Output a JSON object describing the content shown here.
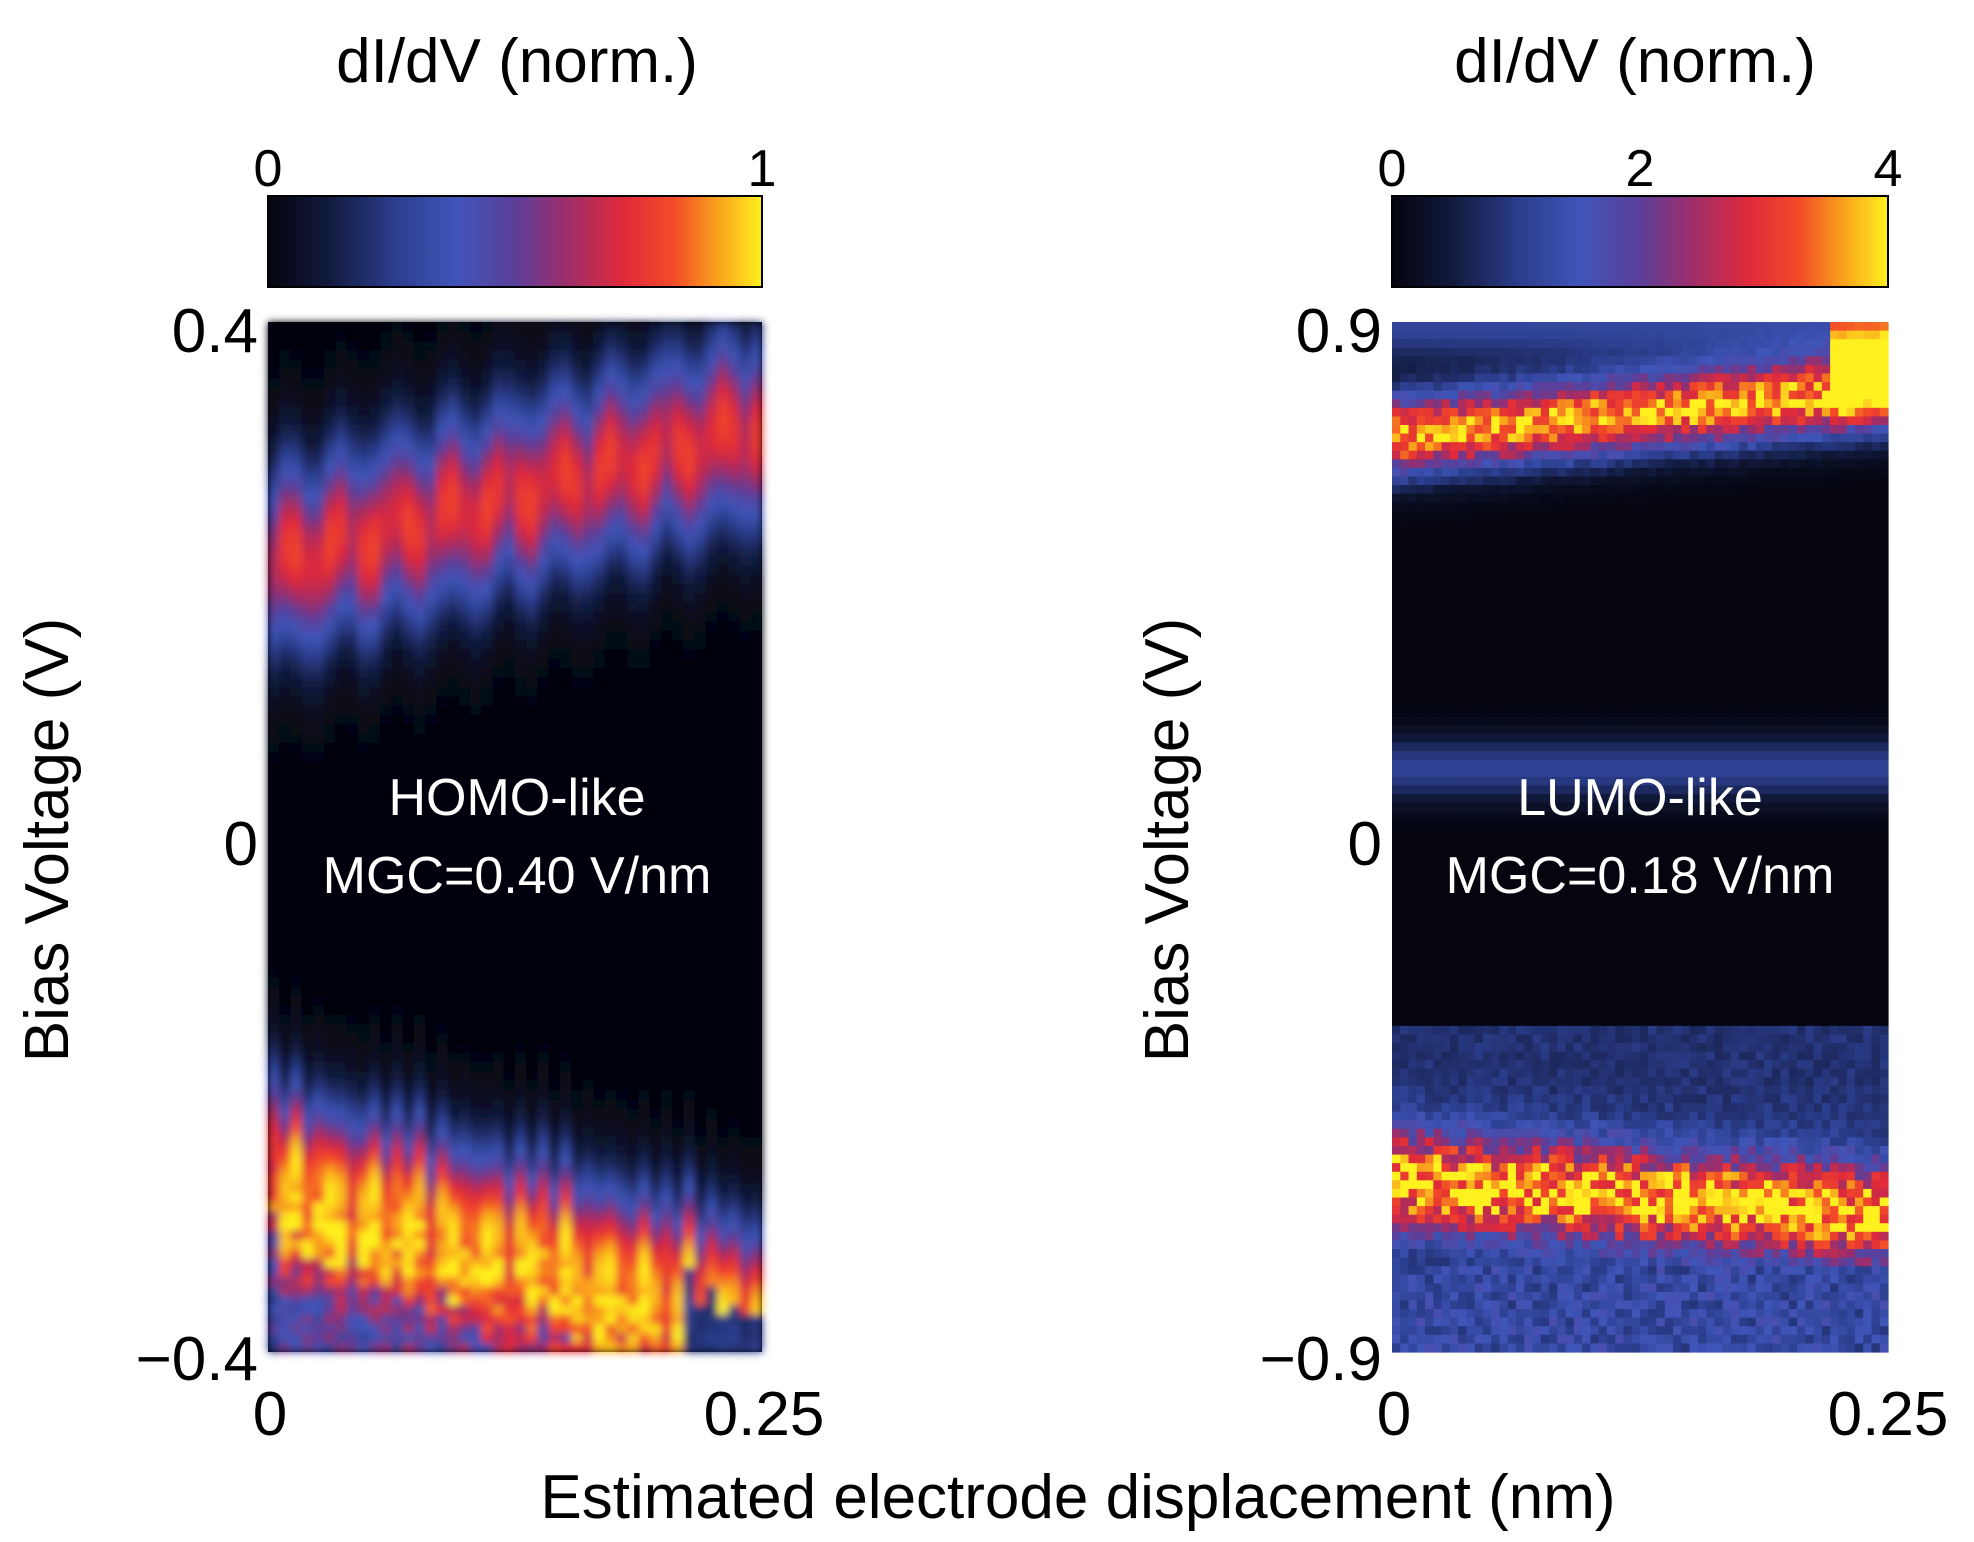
{
  "chart_data": [
    {
      "type": "heatmap",
      "annotation": [
        "HOMO-like",
        "MGC=0.40 V/nm"
      ],
      "xlabel": "Estimated electrode displacement (nm)",
      "ylabel": "Bias Voltage (V)",
      "xlim": [
        0,
        0.25
      ],
      "ylim": [
        -0.4,
        0.4
      ],
      "xticks": [
        "0",
        "0.25"
      ],
      "yticks": [
        "−0.4",
        "0",
        "0.4"
      ],
      "colorbar": {
        "label": "dI/dV (norm.)",
        "range": [
          0,
          1
        ],
        "ticks": [
          "0",
          "1"
        ]
      },
      "bands": [
        {
          "name": "upper",
          "v_start": 0.21,
          "v_end": 0.32,
          "peak": 0.8
        },
        {
          "name": "lower",
          "v_start": -0.24,
          "v_end": -0.35,
          "peak": 1.0
        }
      ]
    },
    {
      "type": "heatmap",
      "annotation": [
        "LUMO-like",
        "MGC=0.18 V/nm"
      ],
      "xlabel": "Estimated electrode displacement (nm)",
      "ylabel": "Bias Voltage (V)",
      "xlim": [
        0,
        0.25
      ],
      "ylim": [
        -0.9,
        0.9
      ],
      "xticks": [
        "0",
        "0.25"
      ],
      "yticks": [
        "−0.9",
        "0",
        "0.9"
      ],
      "colorbar": {
        "label": "dI/dV (norm.)",
        "range": [
          0,
          4
        ],
        "ticks": [
          "0",
          "2",
          "4"
        ]
      },
      "bands": [
        {
          "name": "upper",
          "v_start": 0.7,
          "v_end": 0.78,
          "peak": 4.0
        },
        {
          "name": "lower",
          "v_start": -0.6,
          "v_end": -0.66,
          "peak": 3.6
        }
      ]
    }
  ]
}
